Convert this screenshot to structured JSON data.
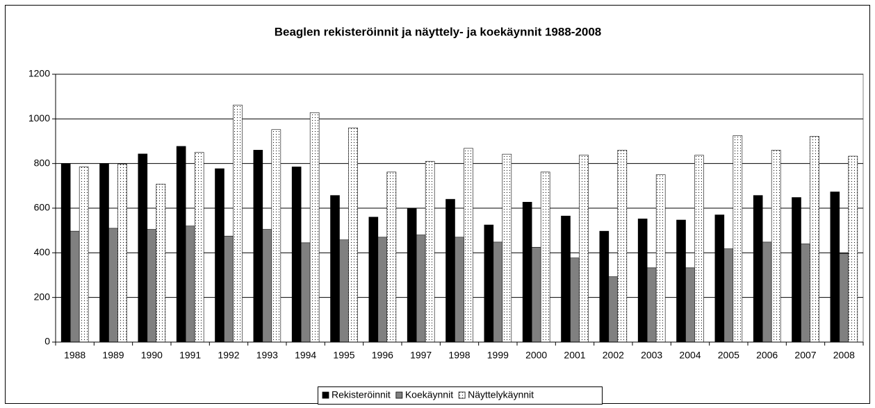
{
  "chart_data": {
    "type": "bar",
    "title": "Beaglen rekisteröinnit ja näyttely- ja koekäynnit 1988-2008",
    "categories": [
      "1988",
      "1989",
      "1990",
      "1991",
      "1992",
      "1993",
      "1994",
      "1995",
      "1996",
      "1997",
      "1998",
      "1999",
      "2000",
      "2001",
      "2002",
      "2003",
      "2004",
      "2005",
      "2006",
      "2007",
      "2008"
    ],
    "series": [
      {
        "name": "Rekisteröinnit",
        "color": "#000000",
        "values": [
          800,
          800,
          843,
          877,
          777,
          860,
          785,
          657,
          560,
          600,
          640,
          525,
          627,
          565,
          497,
          552,
          547,
          570,
          657,
          648,
          673
        ]
      },
      {
        "name": "Koekäynnit",
        "color": "#808080",
        "values": [
          497,
          510,
          505,
          520,
          475,
          505,
          445,
          458,
          470,
          480,
          470,
          448,
          425,
          377,
          293,
          333,
          333,
          418,
          448,
          440,
          397
        ]
      },
      {
        "name": "Näyttelykäynnit",
        "color": "#ffffff",
        "fill_pattern": "dots",
        "values": [
          785,
          797,
          708,
          850,
          1062,
          952,
          1028,
          960,
          762,
          810,
          868,
          842,
          762,
          838,
          860,
          750,
          837,
          925,
          860,
          922,
          833
        ]
      }
    ],
    "ylim": [
      0,
      1200
    ],
    "yticks": [
      0,
      200,
      400,
      600,
      800,
      1000,
      1200
    ],
    "grid": true,
    "legend": "bottom"
  }
}
